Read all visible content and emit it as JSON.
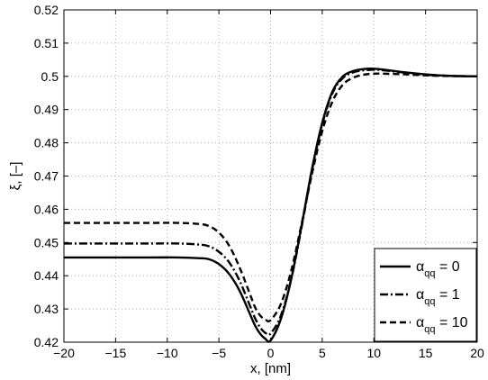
{
  "chart_data": {
    "type": "line",
    "xlabel": "x, [nm]",
    "ylabel": "ξ, [–]",
    "xlim": [
      -20,
      20
    ],
    "ylim": [
      0.42,
      0.52
    ],
    "xticks": [
      -20,
      -15,
      -10,
      -5,
      0,
      5,
      10,
      15,
      20
    ],
    "yticks": [
      0.42,
      0.43,
      0.44,
      0.45,
      0.46,
      0.47,
      0.48,
      0.49,
      0.5,
      0.51,
      0.52
    ],
    "xtick_labels": [
      "−20",
      "−15",
      "−10",
      "−5",
      "0",
      "5",
      "10",
      "15",
      "20"
    ],
    "ytick_labels": [
      "0.42",
      "0.43",
      "0.44",
      "0.45",
      "0.46",
      "0.47",
      "0.48",
      "0.49",
      "0.5",
      "0.51",
      "0.52"
    ],
    "grid": true,
    "legend_position": "bottom-right",
    "series": [
      {
        "name": "α_qq = 0",
        "legend_main": "α",
        "legend_sub": "qq",
        "legend_rest": " = 0",
        "style": "solid",
        "color": "#000000",
        "x": [
          -20,
          -12,
          -9,
          -7,
          -6,
          -5,
          -4,
          -3,
          -2,
          -1.5,
          -1,
          -0.5,
          0,
          1,
          2,
          3,
          4,
          5,
          6,
          7,
          8,
          9,
          10,
          11,
          13,
          15,
          17,
          20
        ],
        "y": [
          0.4455,
          0.4455,
          0.4455,
          0.4453,
          0.445,
          0.4435,
          0.4405,
          0.4355,
          0.4285,
          0.425,
          0.4225,
          0.421,
          0.4205,
          0.427,
          0.439,
          0.455,
          0.472,
          0.486,
          0.4955,
          0.5,
          0.5016,
          0.5022,
          0.5023,
          0.502,
          0.5012,
          0.5006,
          0.5002,
          0.5
        ]
      },
      {
        "name": "α_qq = 1",
        "legend_main": "α",
        "legend_sub": "qq",
        "legend_rest": " = 1",
        "style": "dashdot",
        "color": "#000000",
        "x": [
          -20,
          -12,
          -9,
          -7,
          -6,
          -5,
          -4,
          -3,
          -2,
          -1.5,
          -1,
          -0.5,
          0,
          1,
          2,
          3,
          4,
          5,
          6,
          7,
          8,
          9,
          10,
          11,
          13,
          15,
          17,
          20
        ],
        "y": [
          0.4497,
          0.4497,
          0.4497,
          0.4494,
          0.4489,
          0.4472,
          0.444,
          0.4385,
          0.431,
          0.4272,
          0.4244,
          0.4228,
          0.4226,
          0.428,
          0.439,
          0.4545,
          0.4715,
          0.4855,
          0.495,
          0.4995,
          0.5012,
          0.5018,
          0.502,
          0.5018,
          0.5011,
          0.5005,
          0.5002,
          0.5
        ]
      },
      {
        "name": "α_qq = 10",
        "legend_main": "α",
        "legend_sub": "qq",
        "legend_rest": " = 10",
        "style": "dashed",
        "color": "#000000",
        "x": [
          -20,
          -12,
          -9,
          -7,
          -6,
          -5,
          -4,
          -3,
          -2,
          -1.5,
          -1,
          -0.5,
          0,
          1,
          2,
          3,
          4,
          5,
          6,
          7,
          8,
          9,
          10,
          11,
          13,
          15,
          17,
          20
        ],
        "y": [
          0.4559,
          0.4559,
          0.4559,
          0.4556,
          0.455,
          0.453,
          0.449,
          0.4425,
          0.4345,
          0.4305,
          0.428,
          0.4268,
          0.4266,
          0.4315,
          0.4415,
          0.4555,
          0.4705,
          0.4835,
          0.4925,
          0.4975,
          0.4996,
          0.5005,
          0.5008,
          0.5008,
          0.5006,
          0.5003,
          0.5001,
          0.5
        ]
      }
    ]
  }
}
